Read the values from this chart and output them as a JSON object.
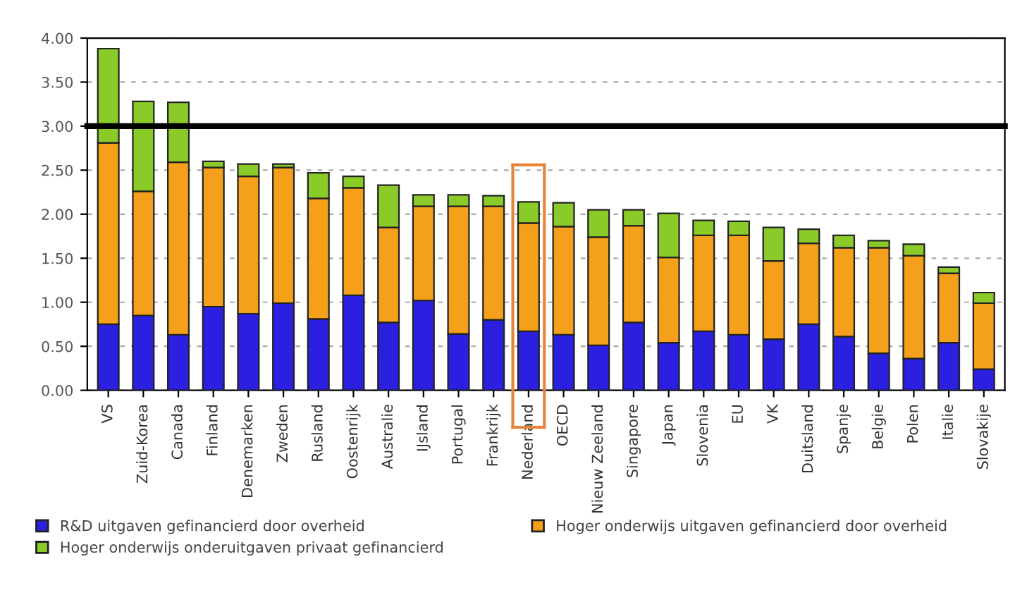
{
  "chart_data": {
    "type": "bar",
    "stacked": true,
    "categories": [
      "VS",
      "Zuid-Korea",
      "Canada",
      "Finland",
      "Denemarken",
      "Zweden",
      "Rusland",
      "Oostenrijk",
      "Australie",
      "IJsland",
      "Portugal",
      "Frankrijk",
      "Nederland",
      "OECD",
      "Nieuw Zeeland",
      "Singapore",
      "Japan",
      "Slovenia",
      "EU",
      "VK",
      "Duitsland",
      "Spanje",
      "Belgie",
      "Polen",
      "Italie",
      "Slovakije"
    ],
    "series": [
      {
        "name": "R&D uitgaven gefinancierd door overheid",
        "color": "#2b1fe0",
        "values": [
          0.75,
          0.85,
          0.63,
          0.95,
          0.87,
          0.99,
          0.81,
          1.08,
          0.77,
          1.02,
          0.64,
          0.8,
          0.67,
          0.63,
          0.51,
          0.77,
          0.54,
          0.67,
          0.63,
          0.58,
          0.75,
          0.61,
          0.42,
          0.36,
          0.54,
          0.24
        ]
      },
      {
        "name": "Hoger onderwijs uitgaven gefinancierd door overheid",
        "color": "#f5a01a",
        "values": [
          2.06,
          1.41,
          1.96,
          1.58,
          1.56,
          1.54,
          1.37,
          1.22,
          1.08,
          1.07,
          1.45,
          1.29,
          1.23,
          1.23,
          1.23,
          1.1,
          0.97,
          1.09,
          1.13,
          0.89,
          0.92,
          1.01,
          1.2,
          1.17,
          0.79,
          0.75
        ]
      },
      {
        "name": "Hoger onderwijs onderuitgaven privaat gefinancierd",
        "color": "#8acb2a",
        "values": [
          1.07,
          1.02,
          0.68,
          0.07,
          0.14,
          0.04,
          0.29,
          0.13,
          0.48,
          0.13,
          0.13,
          0.12,
          0.24,
          0.27,
          0.31,
          0.18,
          0.5,
          0.17,
          0.16,
          0.38,
          0.16,
          0.14,
          0.08,
          0.13,
          0.07,
          0.12
        ]
      }
    ],
    "ylim": [
      0,
      4
    ],
    "yticks": [
      {
        "value": 0,
        "label": "0.00"
      },
      {
        "value": 0.5,
        "label": "0.50"
      },
      {
        "value": 1,
        "label": "1.00"
      },
      {
        "value": 1.5,
        "label": "1.50"
      },
      {
        "value": 2,
        "label": "2.00"
      },
      {
        "value": 2.5,
        "label": "2.50"
      },
      {
        "value": 3,
        "label": "3.00"
      },
      {
        "value": 3.5,
        "label": "3.50"
      },
      {
        "value": 4,
        "label": "4.00"
      }
    ],
    "ref_lines": [
      {
        "axis": "y",
        "value": 3,
        "color": "#000000",
        "line_style": "solid"
      }
    ],
    "grid": "y",
    "legend": "bottom"
  }
}
